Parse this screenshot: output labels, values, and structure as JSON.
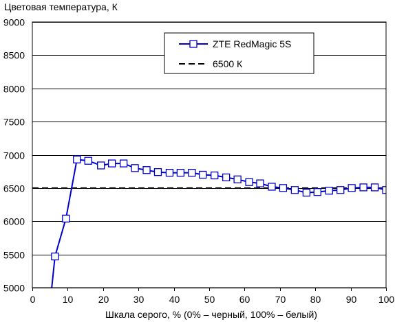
{
  "chart_data": {
    "type": "line",
    "title": "",
    "ylabel": "Цветовая температура, К",
    "xlabel": "Шкала серого, % (0% – черный, 100% – белый)",
    "xlim": [
      0,
      100
    ],
    "ylim": [
      5000,
      9000
    ],
    "x_ticks": [
      0,
      10,
      20,
      30,
      40,
      50,
      60,
      70,
      80,
      90,
      100
    ],
    "y_ticks": [
      5000,
      5500,
      6000,
      6500,
      7000,
      7500,
      8000,
      8500,
      9000
    ],
    "grid": "horizontal",
    "legend_position": "top-right",
    "series": [
      {
        "name": "ZTE RedMagic 5S",
        "style": "line-with-square-markers",
        "color": "#0000cc",
        "x": [
          5.3,
          6.4,
          9.5,
          12.6,
          15.8,
          19.4,
          22.5,
          25.8,
          29.0,
          32.3,
          35.5,
          38.8,
          41.9,
          45.1,
          48.2,
          51.5,
          54.8,
          58.0,
          61.3,
          64.4,
          67.7,
          70.9,
          74.2,
          77.5,
          80.6,
          83.9,
          87.1,
          90.3,
          93.6,
          96.8,
          100.0
        ],
        "y": [
          4900,
          5470,
          6040,
          6930,
          6910,
          6840,
          6870,
          6870,
          6800,
          6770,
          6740,
          6730,
          6730,
          6730,
          6700,
          6690,
          6660,
          6630,
          6590,
          6570,
          6520,
          6500,
          6470,
          6430,
          6440,
          6460,
          6470,
          6500,
          6510,
          6510,
          6470
        ]
      },
      {
        "name": "6500 К",
        "style": "dashed",
        "color": "#000000",
        "x": [
          0,
          100
        ],
        "y": [
          6500,
          6500
        ]
      }
    ]
  }
}
